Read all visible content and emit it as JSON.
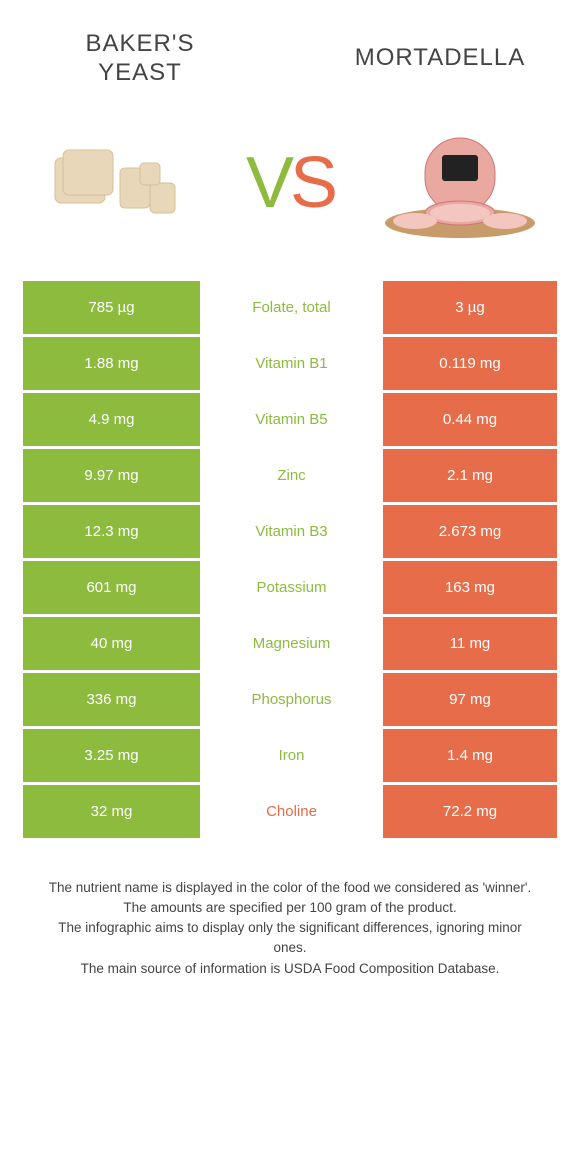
{
  "header": {
    "left_title": "BAKER'S YEAST",
    "right_title": "MORTADELLA",
    "vs_v": "V",
    "vs_s": "S"
  },
  "colors": {
    "green": "#8dbb3e",
    "orange": "#e76c4a",
    "background": "#ffffff",
    "text": "#444444"
  },
  "table": {
    "rows": [
      {
        "left": "785 µg",
        "label": "Folate, total",
        "right": "3 µg",
        "winner": "green"
      },
      {
        "left": "1.88 mg",
        "label": "Vitamin B1",
        "right": "0.119 mg",
        "winner": "green"
      },
      {
        "left": "4.9 mg",
        "label": "Vitamin B5",
        "right": "0.44 mg",
        "winner": "green"
      },
      {
        "left": "9.97 mg",
        "label": "Zinc",
        "right": "2.1 mg",
        "winner": "green"
      },
      {
        "left": "12.3 mg",
        "label": "Vitamin B3",
        "right": "2.673 mg",
        "winner": "green"
      },
      {
        "left": "601 mg",
        "label": "Potassium",
        "right": "163 mg",
        "winner": "green"
      },
      {
        "left": "40 mg",
        "label": "Magnesium",
        "right": "11 mg",
        "winner": "green"
      },
      {
        "left": "336 mg",
        "label": "Phosphorus",
        "right": "97 mg",
        "winner": "green"
      },
      {
        "left": "3.25 mg",
        "label": "Iron",
        "right": "1.4 mg",
        "winner": "green"
      },
      {
        "left": "32 mg",
        "label": "Choline",
        "right": "72.2 mg",
        "winner": "orange"
      }
    ]
  },
  "footer": {
    "line1": "The nutrient name is displayed in the color of the food we considered as 'winner'.",
    "line2": "The amounts are specified per 100 gram of the product.",
    "line3": "The infographic aims to display only the significant differences, ignoring minor ones.",
    "line4": "The main source of information is USDA Food Composition Database."
  }
}
